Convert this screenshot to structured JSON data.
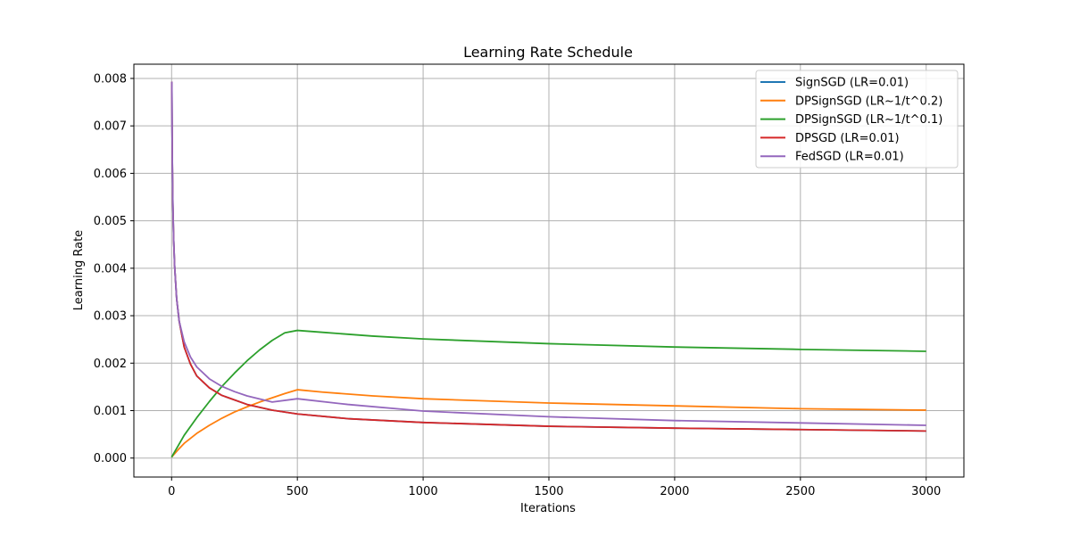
{
  "chart_data": {
    "type": "line",
    "title": "Learning Rate Schedule",
    "xlabel": "Iterations",
    "ylabel": "Learning Rate",
    "xlim": [
      -150,
      3150
    ],
    "ylim": [
      -0.0004,
      0.0083
    ],
    "xticks": [
      0,
      500,
      1000,
      1500,
      2000,
      2500,
      3000
    ],
    "xtick_labels": [
      "0",
      "500",
      "1000",
      "1500",
      "2000",
      "2500",
      "3000"
    ],
    "yticks": [
      0,
      0.001,
      0.002,
      0.003,
      0.004,
      0.005,
      0.006,
      0.007,
      0.008
    ],
    "ytick_labels": [
      "0.000",
      "0.001",
      "0.002",
      "0.003",
      "0.004",
      "0.005",
      "0.006",
      "0.007",
      "0.008"
    ],
    "grid": true,
    "legend_position": "top-right",
    "series": [
      {
        "name": "SignSGD (LR=0.01)",
        "color": "#1f77b4",
        "x": [
          1,
          2,
          3,
          5,
          8,
          12,
          20,
          30,
          50,
          75,
          100,
          150,
          200,
          300,
          400,
          500,
          700,
          1000,
          1500,
          2000,
          2500,
          3000
        ],
        "y": [
          0.00793,
          0.00689,
          0.00619,
          0.00535,
          0.00463,
          0.00405,
          0.00336,
          0.00289,
          0.00234,
          0.00198,
          0.00173,
          0.00148,
          0.00132,
          0.00113,
          0.00101,
          0.00093,
          0.00083,
          0.00075,
          0.00067,
          0.00063,
          0.0006,
          0.00057
        ]
      },
      {
        "name": "DPSignSGD (LR~1/t^0.2)",
        "color": "#ff7f0e",
        "x": [
          0,
          25,
          50,
          100,
          150,
          200,
          250,
          300,
          350,
          400,
          450,
          500,
          600,
          800,
          1000,
          1500,
          2000,
          2500,
          3000
        ],
        "y": [
          2e-05,
          0.00017,
          0.00031,
          0.00052,
          0.00069,
          0.00084,
          0.00097,
          0.00108,
          0.00118,
          0.00127,
          0.00136,
          0.00144,
          0.00139,
          0.00131,
          0.00125,
          0.00116,
          0.0011,
          0.00104,
          0.00101
        ]
      },
      {
        "name": "DPSignSGD (LR~1/t^0.1)",
        "color": "#2ca02c",
        "x": [
          0,
          25,
          50,
          100,
          150,
          200,
          250,
          300,
          350,
          400,
          450,
          500,
          600,
          800,
          1000,
          1500,
          2000,
          2500,
          3000
        ],
        "y": [
          2e-05,
          0.00025,
          0.00048,
          0.00085,
          0.00119,
          0.00151,
          0.00179,
          0.00205,
          0.00228,
          0.00248,
          0.00264,
          0.00269,
          0.00265,
          0.00257,
          0.00251,
          0.00241,
          0.00234,
          0.00229,
          0.00225
        ]
      },
      {
        "name": "DPSGD (LR=0.01)",
        "color": "#d62728",
        "x": [
          1,
          2,
          3,
          5,
          8,
          12,
          20,
          30,
          50,
          75,
          100,
          150,
          200,
          300,
          400,
          500,
          700,
          1000,
          1500,
          2000,
          2500,
          3000
        ],
        "y": [
          0.00793,
          0.00689,
          0.00619,
          0.00535,
          0.00463,
          0.00405,
          0.00336,
          0.00289,
          0.00234,
          0.00198,
          0.00173,
          0.00148,
          0.00132,
          0.00113,
          0.00101,
          0.00093,
          0.00083,
          0.00075,
          0.00067,
          0.00063,
          0.0006,
          0.00057
        ]
      },
      {
        "name": "FedSGD (LR=0.01)",
        "color": "#9467bd",
        "x": [
          1,
          2,
          3,
          5,
          8,
          12,
          20,
          30,
          50,
          75,
          100,
          150,
          200,
          250,
          300,
          400,
          500,
          700,
          1000,
          1500,
          2000,
          2500,
          3000
        ],
        "y": [
          0.00793,
          0.00689,
          0.00619,
          0.00535,
          0.00463,
          0.00405,
          0.00336,
          0.00289,
          0.00245,
          0.00213,
          0.00192,
          0.00167,
          0.00151,
          0.0014,
          0.00131,
          0.00118,
          0.00125,
          0.00113,
          0.00099,
          0.00087,
          0.00079,
          0.00074,
          0.00069
        ]
      }
    ]
  }
}
